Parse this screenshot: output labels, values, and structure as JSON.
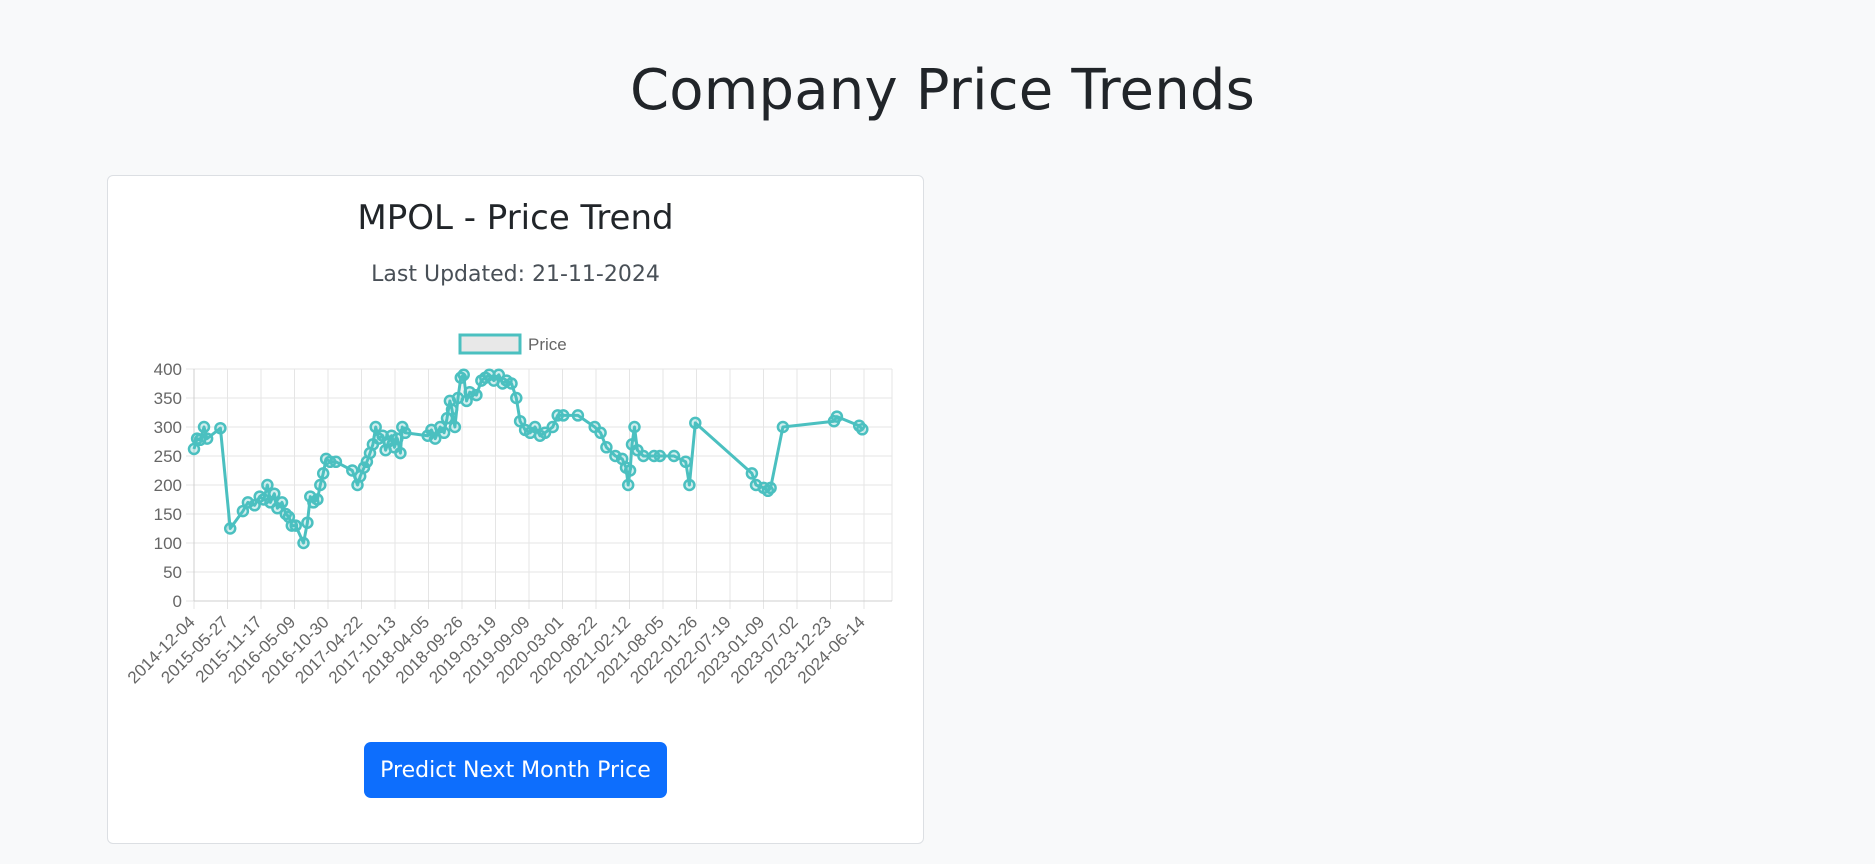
{
  "page": {
    "title": "Company Price Trends"
  },
  "card": {
    "title": "MPOL - Price Trend",
    "last_updated": "Last Updated: 21-11-2024",
    "predict_button": "Predict Next Month Price"
  },
  "colors": {
    "line": "#4bc0c0",
    "button": "#0d6efd",
    "grid": "#e5e5e5"
  },
  "chart_data": {
    "type": "line",
    "legend": [
      "Price"
    ],
    "legend_position": "top",
    "grid": true,
    "ylim": [
      0,
      400
    ],
    "yticks": [
      0,
      50,
      100,
      150,
      200,
      250,
      300,
      350,
      400
    ],
    "x_ticks": [
      "2014-12-04",
      "2015-05-27",
      "2015-11-17",
      "2016-05-09",
      "2016-10-30",
      "2017-04-22",
      "2017-10-13",
      "2018-04-05",
      "2018-09-26",
      "2019-03-19",
      "2019-09-09",
      "2020-03-01",
      "2020-08-22",
      "2021-02-12",
      "2021-08-05",
      "2022-01-26",
      "2022-07-19",
      "2023-01-09",
      "2023-07-02",
      "2023-12-23",
      "2024-06-14"
    ],
    "series": [
      {
        "name": "Price",
        "points": [
          [
            "2014-12-04",
            262
          ],
          [
            "2014-12-20",
            280
          ],
          [
            "2015-01-05",
            278
          ],
          [
            "2015-01-25",
            300
          ],
          [
            "2015-02-10",
            280
          ],
          [
            "2015-04-20",
            298
          ],
          [
            "2015-06-10",
            125
          ],
          [
            "2015-08-15",
            155
          ],
          [
            "2015-09-10",
            170
          ],
          [
            "2015-10-15",
            165
          ],
          [
            "2015-11-10",
            180
          ],
          [
            "2015-12-01",
            175
          ],
          [
            "2015-12-20",
            200
          ],
          [
            "2016-01-05",
            170
          ],
          [
            "2016-01-25",
            185
          ],
          [
            "2016-02-10",
            160
          ],
          [
            "2016-03-05",
            170
          ],
          [
            "2016-03-25",
            150
          ],
          [
            "2016-04-10",
            145
          ],
          [
            "2016-04-25",
            130
          ],
          [
            "2016-05-15",
            130
          ],
          [
            "2016-06-25",
            100
          ],
          [
            "2016-07-15",
            135
          ],
          [
            "2016-07-30",
            180
          ],
          [
            "2016-08-15",
            170
          ],
          [
            "2016-09-05",
            175
          ],
          [
            "2016-09-20",
            200
          ],
          [
            "2016-10-05",
            220
          ],
          [
            "2016-10-20",
            245
          ],
          [
            "2016-11-10",
            240
          ],
          [
            "2016-12-10",
            240
          ],
          [
            "2017-03-05",
            225
          ],
          [
            "2017-04-01",
            200
          ],
          [
            "2017-04-15",
            215
          ],
          [
            "2017-05-05",
            230
          ],
          [
            "2017-05-20",
            240
          ],
          [
            "2017-06-05",
            255
          ],
          [
            "2017-06-20",
            270
          ],
          [
            "2017-07-05",
            300
          ],
          [
            "2017-07-20",
            280
          ],
          [
            "2017-08-10",
            285
          ],
          [
            "2017-08-25",
            260
          ],
          [
            "2017-09-10",
            275
          ],
          [
            "2017-09-25",
            285
          ],
          [
            "2017-10-10",
            265
          ],
          [
            "2017-10-25",
            280
          ],
          [
            "2017-11-10",
            255
          ],
          [
            "2017-11-20",
            300
          ],
          [
            "2017-12-05",
            290
          ],
          [
            "2018-04-01",
            285
          ],
          [
            "2018-04-20",
            295
          ],
          [
            "2018-05-10",
            280
          ],
          [
            "2018-06-05",
            300
          ],
          [
            "2018-06-25",
            290
          ],
          [
            "2018-07-10",
            315
          ],
          [
            "2018-07-25",
            345
          ],
          [
            "2018-08-05",
            330
          ],
          [
            "2018-08-20",
            300
          ],
          [
            "2018-09-05",
            350
          ],
          [
            "2018-09-20",
            385
          ],
          [
            "2018-10-05",
            390
          ],
          [
            "2018-10-20",
            345
          ],
          [
            "2018-11-05",
            360
          ],
          [
            "2018-12-10",
            355
          ],
          [
            "2019-01-05",
            380
          ],
          [
            "2019-01-25",
            385
          ],
          [
            "2019-02-15",
            390
          ],
          [
            "2019-03-10",
            380
          ],
          [
            "2019-04-05",
            390
          ],
          [
            "2019-04-25",
            375
          ],
          [
            "2019-05-15",
            380
          ],
          [
            "2019-06-10",
            375
          ],
          [
            "2019-07-05",
            350
          ],
          [
            "2019-07-25",
            310
          ],
          [
            "2019-08-20",
            295
          ],
          [
            "2019-09-15",
            290
          ],
          [
            "2019-10-10",
            300
          ],
          [
            "2019-11-05",
            285
          ],
          [
            "2019-12-01",
            290
          ],
          [
            "2020-01-10",
            300
          ],
          [
            "2020-02-05",
            320
          ],
          [
            "2020-03-05",
            320
          ],
          [
            "2020-05-20",
            320
          ],
          [
            "2020-08-15",
            300
          ],
          [
            "2020-09-15",
            290
          ],
          [
            "2020-10-15",
            265
          ],
          [
            "2020-12-01",
            250
          ],
          [
            "2021-01-05",
            245
          ],
          [
            "2021-01-25",
            230
          ],
          [
            "2021-02-05",
            200
          ],
          [
            "2021-02-15",
            225
          ],
          [
            "2021-02-25",
            270
          ],
          [
            "2021-03-10",
            300
          ],
          [
            "2021-03-25",
            260
          ],
          [
            "2021-04-25",
            250
          ],
          [
            "2021-06-20",
            250
          ],
          [
            "2021-07-20",
            250
          ],
          [
            "2021-10-01",
            250
          ],
          [
            "2021-12-01",
            240
          ],
          [
            "2021-12-20",
            200
          ],
          [
            "2022-01-20",
            307
          ],
          [
            "2022-11-10",
            220
          ],
          [
            "2022-12-01",
            200
          ],
          [
            "2023-01-10",
            195
          ],
          [
            "2023-02-01",
            190
          ],
          [
            "2023-02-15",
            195
          ],
          [
            "2023-04-20",
            300
          ],
          [
            "2024-01-10",
            310
          ],
          [
            "2024-01-25",
            318
          ],
          [
            "2024-05-20",
            302
          ],
          [
            "2024-06-05",
            296
          ]
        ]
      }
    ]
  }
}
